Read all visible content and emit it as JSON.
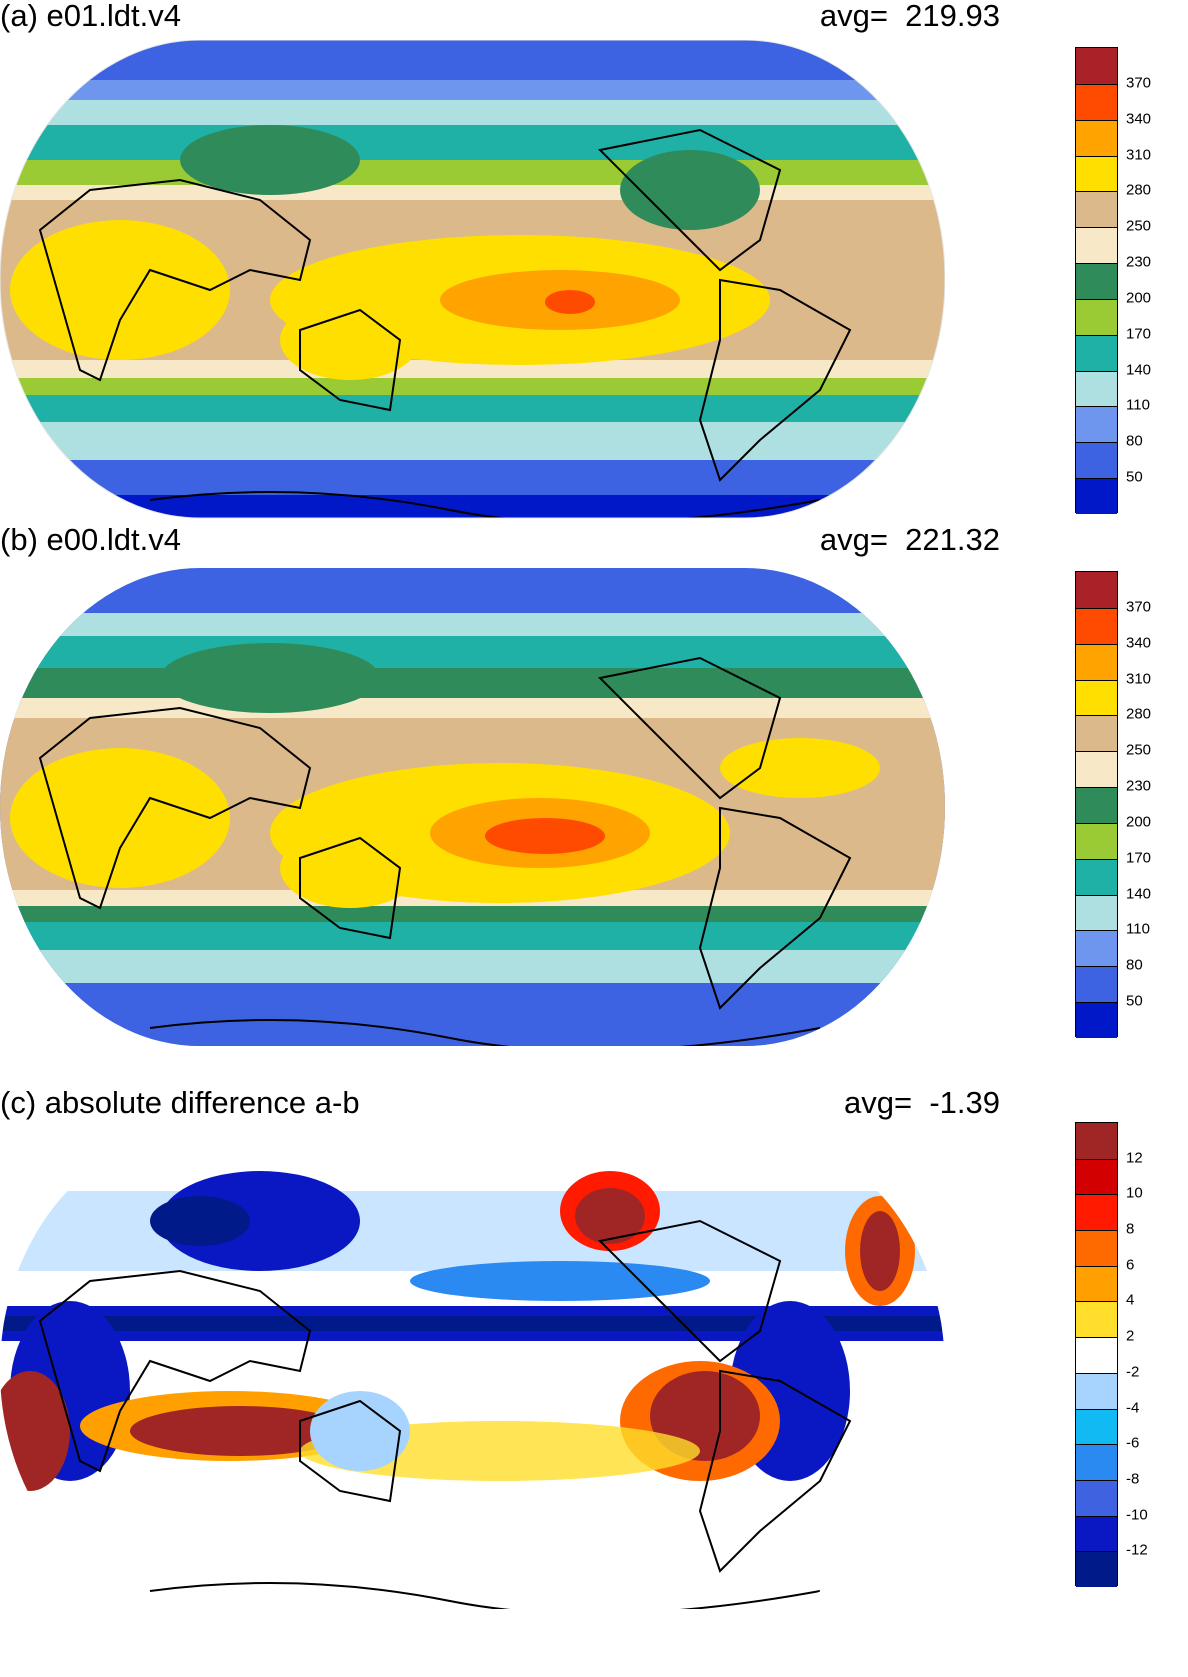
{
  "panels": [
    {
      "title": "(a) e01.ldt.v4",
      "avg_label": "avg=",
      "avg_value": "219.93",
      "colorbar": {
        "colors": [
          "#aa2228",
          "#ff4b00",
          "#ffa300",
          "#ffdf00",
          "#dcb98b",
          "#f7e9c7",
          "#2f8c5a",
          "#9acb35",
          "#20b1a6",
          "#aedfe1",
          "#6f96ee",
          "#3d63e2",
          "#0018c7"
        ],
        "labels": [
          "370",
          "340",
          "310",
          "280",
          "250",
          "230",
          "200",
          "170",
          "140",
          "110",
          "80",
          "50"
        ]
      }
    },
    {
      "title": "(b) e00.ldt.v4",
      "avg_label": "avg=",
      "avg_value": "221.32",
      "colorbar": {
        "colors": [
          "#aa2228",
          "#ff4b00",
          "#ffa300",
          "#ffdf00",
          "#dcb98b",
          "#f7e9c7",
          "#2f8c5a",
          "#9acb35",
          "#20b1a6",
          "#aedfe1",
          "#6f96ee",
          "#3d63e2",
          "#0018c7"
        ],
        "labels": [
          "370",
          "340",
          "310",
          "280",
          "250",
          "230",
          "200",
          "170",
          "140",
          "110",
          "80",
          "50"
        ]
      }
    },
    {
      "title": "(c) absolute difference a-b",
      "avg_label": "avg=",
      "avg_value": "-1.39",
      "colorbar": {
        "colors": [
          "#a02626",
          "#d20000",
          "#ff1a00",
          "#ff6a00",
          "#ffa000",
          "#ffdf2b",
          "#ffffff",
          "#a6d4ff",
          "#12baf4",
          "#2b8af2",
          "#3e62e0",
          "#0a18c4",
          "#001a8a"
        ],
        "labels": [
          "12",
          "10",
          "8",
          "6",
          "4",
          "2",
          "-2",
          "-4",
          "-6",
          "-8",
          "-10",
          "-12"
        ]
      }
    }
  ]
}
